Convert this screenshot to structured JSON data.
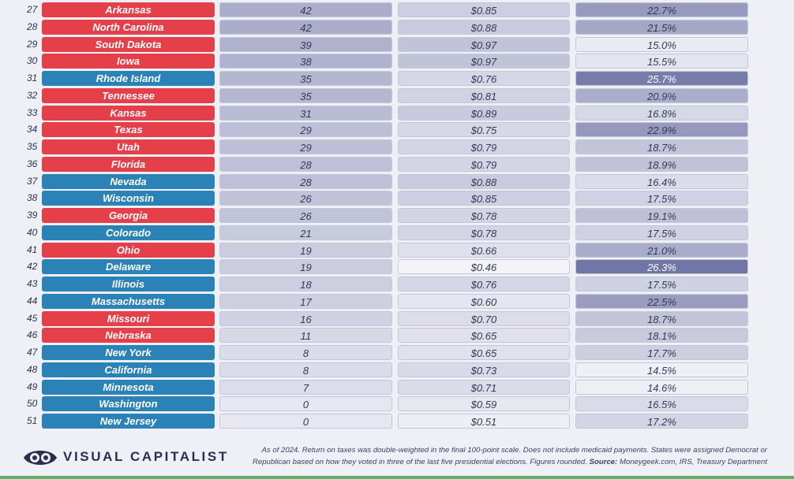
{
  "colors": {
    "republican": "#e5404a",
    "democrat": "#2b82b6",
    "shade_light": "#f6f6fa",
    "shade_dark": "#7276a6"
  },
  "chart_data": {
    "type": "table",
    "columns": [
      "rank",
      "state",
      "score",
      "return_per_dollar",
      "tax_share"
    ],
    "ranges": {
      "score": [
        0,
        42
      ],
      "return_per_dollar": [
        0.46,
        0.97
      ],
      "tax_share": [
        14.5,
        26.3
      ]
    },
    "rows": [
      {
        "rank": "27",
        "state": "Arkansas",
        "party": "R",
        "score": "42",
        "ret": "$0.85",
        "share": "22.7%"
      },
      {
        "rank": "28",
        "state": "North Carolina",
        "party": "R",
        "score": "42",
        "ret": "$0.88",
        "share": "21.5%"
      },
      {
        "rank": "29",
        "state": "South Dakota",
        "party": "R",
        "score": "39",
        "ret": "$0.97",
        "share": "15.0%"
      },
      {
        "rank": "30",
        "state": "Iowa",
        "party": "R",
        "score": "38",
        "ret": "$0.97",
        "share": "15.5%"
      },
      {
        "rank": "31",
        "state": "Rhode Island",
        "party": "D",
        "score": "35",
        "ret": "$0.76",
        "share": "25.7%"
      },
      {
        "rank": "32",
        "state": "Tennessee",
        "party": "R",
        "score": "35",
        "ret": "$0.81",
        "share": "20.9%"
      },
      {
        "rank": "33",
        "state": "Kansas",
        "party": "R",
        "score": "31",
        "ret": "$0.89",
        "share": "16.8%"
      },
      {
        "rank": "34",
        "state": "Texas",
        "party": "R",
        "score": "29",
        "ret": "$0.75",
        "share": "22.9%"
      },
      {
        "rank": "35",
        "state": "Utah",
        "party": "R",
        "score": "29",
        "ret": "$0.79",
        "share": "18.7%"
      },
      {
        "rank": "36",
        "state": "Florida",
        "party": "R",
        "score": "28",
        "ret": "$0.79",
        "share": "18.9%"
      },
      {
        "rank": "37",
        "state": "Nevada",
        "party": "D",
        "score": "28",
        "ret": "$0.88",
        "share": "16.4%"
      },
      {
        "rank": "38",
        "state": "Wisconsin",
        "party": "D",
        "score": "26",
        "ret": "$0.85",
        "share": "17.5%"
      },
      {
        "rank": "39",
        "state": "Georgia",
        "party": "R",
        "score": "26",
        "ret": "$0.78",
        "share": "19.1%"
      },
      {
        "rank": "40",
        "state": "Colorado",
        "party": "D",
        "score": "21",
        "ret": "$0.78",
        "share": "17.5%"
      },
      {
        "rank": "41",
        "state": "Ohio",
        "party": "R",
        "score": "19",
        "ret": "$0.66",
        "share": "21.0%"
      },
      {
        "rank": "42",
        "state": "Delaware",
        "party": "D",
        "score": "19",
        "ret": "$0.46",
        "share": "26.3%"
      },
      {
        "rank": "43",
        "state": "Illinois",
        "party": "D",
        "score": "18",
        "ret": "$0.76",
        "share": "17.5%"
      },
      {
        "rank": "44",
        "state": "Massachusetts",
        "party": "D",
        "score": "17",
        "ret": "$0.60",
        "share": "22.5%"
      },
      {
        "rank": "45",
        "state": "Missouri",
        "party": "R",
        "score": "16",
        "ret": "$0.70",
        "share": "18.7%"
      },
      {
        "rank": "46",
        "state": "Nebraska",
        "party": "R",
        "score": "11",
        "ret": "$0.65",
        "share": "18.1%"
      },
      {
        "rank": "47",
        "state": "New York",
        "party": "D",
        "score": "8",
        "ret": "$0.65",
        "share": "17.7%"
      },
      {
        "rank": "48",
        "state": "California",
        "party": "D",
        "score": "8",
        "ret": "$0.73",
        "share": "14.5%"
      },
      {
        "rank": "49",
        "state": "Minnesota",
        "party": "D",
        "score": "7",
        "ret": "$0.71",
        "share": "14.6%"
      },
      {
        "rank": "50",
        "state": "Washington",
        "party": "D",
        "score": "0",
        "ret": "$0.59",
        "share": "16.5%"
      },
      {
        "rank": "51",
        "state": "New Jersey",
        "party": "D",
        "score": "0",
        "ret": "$0.51",
        "share": "17.2%"
      }
    ]
  },
  "footer": {
    "brand": "VISUAL CAPITALIST",
    "note": "As of 2024. Return on taxes was double-weighted in the final 100-point scale. Does not include medicaid payments. States were assigned Democrat or Republican based on how they voted in three of the last five presidential elections. Figures rounded.",
    "source_label": "Source:",
    "source": "Moneygeek.com, IRS, Treasury Department"
  }
}
